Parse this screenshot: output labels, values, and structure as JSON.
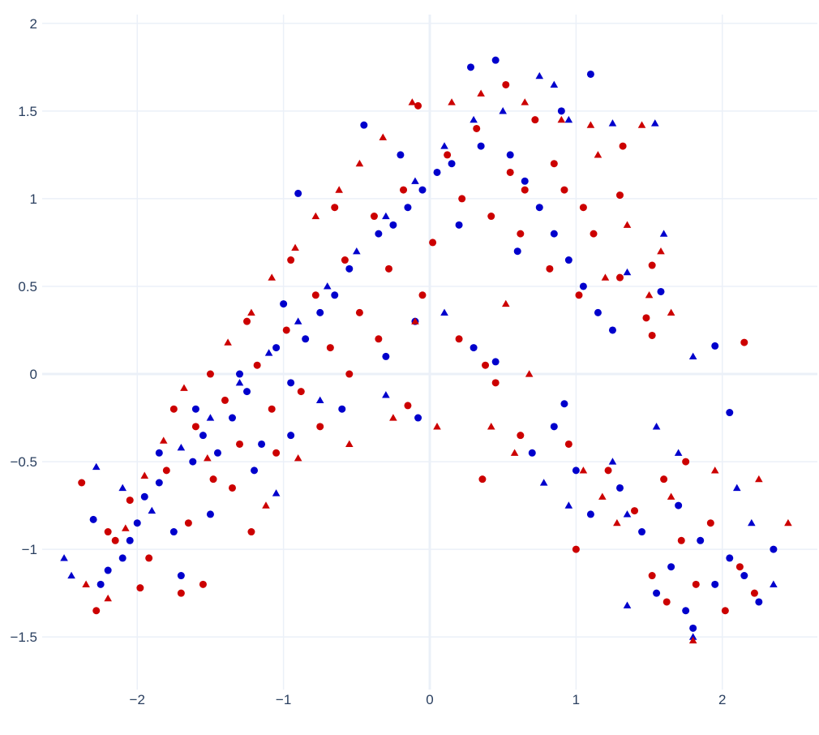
{
  "chart_data": {
    "type": "scatter",
    "title": "",
    "xlabel": "",
    "ylabel": "",
    "xlim": [
      -2.65,
      2.65
    ],
    "ylim": [
      -1.8,
      2.05
    ],
    "grid": true,
    "x_ticks": [
      {
        "value": -2,
        "label": "−2"
      },
      {
        "value": -1,
        "label": "−1"
      },
      {
        "value": 0,
        "label": "0"
      },
      {
        "value": 1,
        "label": "1"
      },
      {
        "value": 2,
        "label": "2"
      }
    ],
    "y_ticks": [
      {
        "value": -1.5,
        "label": "−1.5"
      },
      {
        "value": -1,
        "label": "−1"
      },
      {
        "value": -0.5,
        "label": "−0.5"
      },
      {
        "value": 0,
        "label": "0"
      },
      {
        "value": 0.5,
        "label": "0.5"
      },
      {
        "value": 1,
        "label": "1"
      },
      {
        "value": 1.5,
        "label": "1.5"
      },
      {
        "value": 2,
        "label": "2"
      }
    ],
    "series": [
      {
        "color": "#0000cc",
        "symbol": "circle",
        "points": [
          [
            -2.3,
            -0.83
          ],
          [
            -2.2,
            -1.12
          ],
          [
            -2.05,
            -0.95
          ],
          [
            -1.95,
            -0.7
          ],
          [
            -1.85,
            -0.62
          ],
          [
            -1.75,
            -0.9
          ],
          [
            -1.62,
            -0.5
          ],
          [
            -1.55,
            -0.35
          ],
          [
            -1.45,
            -0.45
          ],
          [
            -1.35,
            -0.25
          ],
          [
            -1.25,
            -0.1
          ],
          [
            -1.15,
            -0.4
          ],
          [
            -1.05,
            0.15
          ],
          [
            -0.95,
            -0.05
          ],
          [
            -0.85,
            0.2
          ],
          [
            -0.75,
            0.35
          ],
          [
            -0.65,
            0.45
          ],
          [
            -0.55,
            0.6
          ],
          [
            -0.45,
            1.42
          ],
          [
            -0.35,
            0.8
          ],
          [
            -0.25,
            0.85
          ],
          [
            -0.15,
            0.95
          ],
          [
            -0.05,
            1.05
          ],
          [
            0.05,
            1.15
          ],
          [
            0.15,
            1.2
          ],
          [
            0.28,
            1.75
          ],
          [
            0.35,
            1.3
          ],
          [
            0.45,
            1.79
          ],
          [
            0.55,
            1.25
          ],
          [
            0.65,
            1.1
          ],
          [
            0.75,
            0.95
          ],
          [
            0.85,
            0.8
          ],
          [
            0.95,
            0.65
          ],
          [
            1.05,
            0.5
          ],
          [
            1.1,
            1.71
          ],
          [
            1.15,
            0.35
          ],
          [
            1.25,
            0.25
          ],
          [
            1.58,
            0.47
          ],
          [
            1.95,
            0.16
          ],
          [
            2.05,
            -0.22
          ],
          [
            0.3,
            0.15
          ],
          [
            0.45,
            0.07
          ],
          [
            0.92,
            -0.17
          ],
          [
            0.7,
            -0.45
          ],
          [
            0.85,
            -0.3
          ],
          [
            1.0,
            -0.55
          ],
          [
            1.1,
            -0.8
          ],
          [
            1.3,
            -0.65
          ],
          [
            1.45,
            -0.9
          ],
          [
            1.55,
            -1.25
          ],
          [
            1.65,
            -1.1
          ],
          [
            1.75,
            -1.35
          ],
          [
            1.85,
            -0.95
          ],
          [
            1.95,
            -1.2
          ],
          [
            2.05,
            -1.05
          ],
          [
            2.15,
            -1.15
          ],
          [
            2.25,
            -1.3
          ],
          [
            2.35,
            -1.0
          ],
          [
            1.8,
            -1.45
          ],
          [
            1.7,
            -0.75
          ],
          [
            -1.7,
            -1.15
          ],
          [
            -2.1,
            -1.05
          ],
          [
            -1.5,
            -0.8
          ],
          [
            -1.2,
            -0.55
          ],
          [
            -0.95,
            -0.35
          ],
          [
            -0.6,
            -0.2
          ],
          [
            -0.3,
            0.1
          ],
          [
            -0.1,
            0.3
          ],
          [
            -0.08,
            -0.25
          ],
          [
            -0.9,
            1.03
          ],
          [
            -0.2,
            1.25
          ],
          [
            0.6,
            0.7
          ],
          [
            0.9,
            1.5
          ],
          [
            0.2,
            0.85
          ],
          [
            -1.0,
            0.4
          ],
          [
            -1.3,
            0.0
          ],
          [
            -1.6,
            -0.2
          ],
          [
            -1.85,
            -0.45
          ],
          [
            -2.0,
            -0.85
          ],
          [
            -2.25,
            -1.2
          ]
        ]
      },
      {
        "color": "#0000cc",
        "symbol": "triangle",
        "points": [
          [
            -2.5,
            -1.05
          ],
          [
            -2.45,
            -1.15
          ],
          [
            -2.28,
            -0.53
          ],
          [
            -2.1,
            -0.65
          ],
          [
            -1.9,
            -0.78
          ],
          [
            -1.7,
            -0.42
          ],
          [
            -1.5,
            -0.25
          ],
          [
            -1.3,
            -0.05
          ],
          [
            -1.1,
            0.12
          ],
          [
            -0.9,
            0.3
          ],
          [
            -0.7,
            0.5
          ],
          [
            -0.5,
            0.7
          ],
          [
            -0.3,
            0.9
          ],
          [
            -0.1,
            1.1
          ],
          [
            0.1,
            1.3
          ],
          [
            0.3,
            1.45
          ],
          [
            0.5,
            1.5
          ],
          [
            0.75,
            1.7
          ],
          [
            0.85,
            1.65
          ],
          [
            0.95,
            1.45
          ],
          [
            1.25,
            1.43
          ],
          [
            1.54,
            1.43
          ],
          [
            1.6,
            0.8
          ],
          [
            1.35,
            0.58
          ],
          [
            1.8,
            0.1
          ],
          [
            1.7,
            -0.45
          ],
          [
            1.55,
            -0.3
          ],
          [
            1.25,
            -0.5
          ],
          [
            0.78,
            -0.62
          ],
          [
            0.95,
            -0.75
          ],
          [
            1.35,
            -0.8
          ],
          [
            2.1,
            -0.65
          ],
          [
            1.35,
            -1.32
          ],
          [
            2.35,
            -1.2
          ],
          [
            1.8,
            -1.5
          ],
          [
            2.2,
            -0.85
          ],
          [
            -0.3,
            -0.12
          ],
          [
            0.1,
            0.35
          ],
          [
            -0.75,
            -0.15
          ],
          [
            -1.05,
            -0.68
          ]
        ]
      },
      {
        "color": "#cc0000",
        "symbol": "circle",
        "points": [
          [
            -2.38,
            -0.62
          ],
          [
            -2.28,
            -1.35
          ],
          [
            -2.15,
            -0.95
          ],
          [
            -2.05,
            -0.72
          ],
          [
            -1.92,
            -1.05
          ],
          [
            -1.8,
            -0.55
          ],
          [
            -1.7,
            -1.25
          ],
          [
            -1.6,
            -0.3
          ],
          [
            -1.48,
            -0.6
          ],
          [
            -1.4,
            -0.15
          ],
          [
            -1.3,
            -0.4
          ],
          [
            -1.18,
            0.05
          ],
          [
            -1.08,
            -0.2
          ],
          [
            -0.98,
            0.25
          ],
          [
            -0.88,
            -0.1
          ],
          [
            -0.78,
            0.45
          ],
          [
            -0.68,
            0.15
          ],
          [
            -0.58,
            0.65
          ],
          [
            -0.48,
            0.35
          ],
          [
            -0.38,
            0.9
          ],
          [
            -0.28,
            0.6
          ],
          [
            -0.18,
            1.05
          ],
          [
            -0.08,
            1.53
          ],
          [
            0.02,
            0.75
          ],
          [
            0.12,
            1.25
          ],
          [
            0.22,
            1.0
          ],
          [
            0.32,
            1.4
          ],
          [
            0.42,
            0.9
          ],
          [
            0.52,
            1.65
          ],
          [
            0.62,
            0.8
          ],
          [
            0.72,
            1.45
          ],
          [
            0.82,
            0.6
          ],
          [
            0.92,
            1.05
          ],
          [
            1.02,
            0.45
          ],
          [
            1.12,
            0.8
          ],
          [
            1.32,
            1.3
          ],
          [
            1.3,
            0.55
          ],
          [
            1.48,
            0.32
          ],
          [
            1.52,
            0.62
          ],
          [
            1.52,
            0.22
          ],
          [
            2.15,
            0.18
          ],
          [
            0.2,
            0.2
          ],
          [
            0.38,
            0.05
          ],
          [
            0.45,
            -0.05
          ],
          [
            0.36,
            -0.6
          ],
          [
            1.0,
            -1.0
          ],
          [
            0.62,
            -0.35
          ],
          [
            0.95,
            -0.4
          ],
          [
            1.22,
            -0.55
          ],
          [
            1.4,
            -0.78
          ],
          [
            1.52,
            -1.15
          ],
          [
            1.62,
            -1.3
          ],
          [
            1.72,
            -0.95
          ],
          [
            1.82,
            -1.2
          ],
          [
            1.92,
            -0.85
          ],
          [
            2.02,
            -1.35
          ],
          [
            2.12,
            -1.1
          ],
          [
            2.22,
            -1.25
          ],
          [
            1.6,
            -0.6
          ],
          [
            1.75,
            -0.5
          ],
          [
            -1.98,
            -1.22
          ],
          [
            -1.55,
            -1.2
          ],
          [
            -1.22,
            -0.9
          ],
          [
            -1.65,
            -0.85
          ],
          [
            -1.35,
            -0.65
          ],
          [
            -1.05,
            -0.45
          ],
          [
            -0.75,
            -0.3
          ],
          [
            -0.55,
            0.0
          ],
          [
            -0.35,
            0.2
          ],
          [
            -0.15,
            -0.18
          ],
          [
            -0.05,
            0.45
          ],
          [
            0.55,
            1.15
          ],
          [
            0.65,
            1.05
          ],
          [
            0.85,
            1.2
          ],
          [
            1.05,
            0.95
          ],
          [
            1.3,
            1.02
          ],
          [
            -0.65,
            0.95
          ],
          [
            -0.95,
            0.65
          ],
          [
            -1.25,
            0.3
          ],
          [
            -1.5,
            0.0
          ],
          [
            -1.75,
            -0.2
          ],
          [
            -2.2,
            -0.9
          ]
        ]
      },
      {
        "color": "#cc0000",
        "symbol": "triangle",
        "points": [
          [
            -2.35,
            -1.2
          ],
          [
            -2.2,
            -1.28
          ],
          [
            -2.08,
            -0.88
          ],
          [
            -1.95,
            -0.58
          ],
          [
            -1.82,
            -0.38
          ],
          [
            -1.68,
            -0.08
          ],
          [
            -1.52,
            -0.48
          ],
          [
            -1.38,
            0.18
          ],
          [
            -1.22,
            0.35
          ],
          [
            -1.08,
            0.55
          ],
          [
            -0.92,
            0.72
          ],
          [
            -0.78,
            0.9
          ],
          [
            -0.62,
            1.05
          ],
          [
            -0.48,
            1.2
          ],
          [
            -0.32,
            1.35
          ],
          [
            -0.12,
            1.55
          ],
          [
            0.15,
            1.55
          ],
          [
            0.35,
            1.6
          ],
          [
            0.65,
            1.55
          ],
          [
            0.9,
            1.45
          ],
          [
            1.1,
            1.42
          ],
          [
            1.45,
            1.42
          ],
          [
            1.15,
            1.25
          ],
          [
            1.35,
            0.85
          ],
          [
            1.58,
            0.7
          ],
          [
            1.5,
            0.45
          ],
          [
            1.65,
            0.35
          ],
          [
            1.2,
            0.55
          ],
          [
            0.52,
            0.4
          ],
          [
            0.68,
            0.0
          ],
          [
            0.42,
            -0.3
          ],
          [
            0.58,
            -0.45
          ],
          [
            1.05,
            -0.55
          ],
          [
            1.18,
            -0.7
          ],
          [
            1.28,
            -0.85
          ],
          [
            1.65,
            -0.7
          ],
          [
            1.95,
            -0.55
          ],
          [
            2.25,
            -0.6
          ],
          [
            2.45,
            -0.85
          ],
          [
            1.8,
            -1.52
          ],
          [
            -0.1,
            0.3
          ],
          [
            -0.25,
            -0.25
          ],
          [
            0.05,
            -0.3
          ],
          [
            -0.55,
            -0.4
          ],
          [
            -0.9,
            -0.48
          ],
          [
            -1.12,
            -0.75
          ]
        ]
      }
    ]
  }
}
